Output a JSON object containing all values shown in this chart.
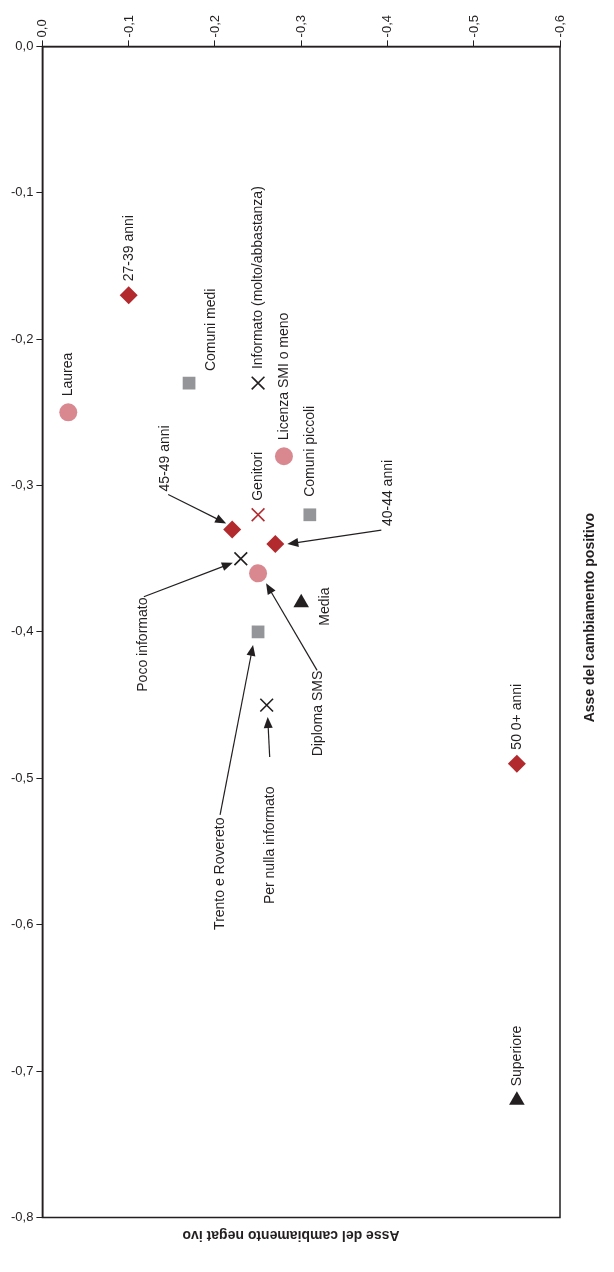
{
  "chart_data": {
    "type": "scatter",
    "xlabel": "Asse del cambiamento negat ivo",
    "ylabel": "Asse del cambiamento positivo",
    "xlim": [
      0,
      -0.6
    ],
    "ylim": [
      -0.8,
      0
    ],
    "xticks": [
      {
        "value": 0,
        "label": "0,0"
      },
      {
        "value": -0.1,
        "label": "-0,1"
      },
      {
        "value": -0.2,
        "label": "-0,2"
      },
      {
        "value": -0.3,
        "label": "-0,3"
      },
      {
        "value": -0.4,
        "label": "-0,4"
      },
      {
        "value": -0.5,
        "label": "-0,5"
      },
      {
        "value": -0.6,
        "label": "-0,6"
      }
    ],
    "yticks": [
      {
        "value": 0,
        "label": "0,0"
      },
      {
        "value": -0.1,
        "label": "-0,1"
      },
      {
        "value": -0.2,
        "label": "-0,2"
      },
      {
        "value": -0.3,
        "label": "-0,3"
      },
      {
        "value": -0.4,
        "label": "-0,4"
      },
      {
        "value": -0.5,
        "label": "-0,5"
      },
      {
        "value": -0.6,
        "label": "-0,6"
      },
      {
        "value": -0.7,
        "label": "-0,7"
      },
      {
        "value": -0.8,
        "label": "-0,8"
      }
    ],
    "series": [
      {
        "color": "#b22a2e",
        "marker": "diamond",
        "x": [
          -0.1,
          -0.22,
          -0.27,
          -0.55
        ],
        "values": [
          -0.17,
          -0.33,
          -0.34,
          -0.49
        ]
      },
      {
        "color": "#939598",
        "marker": "square",
        "x": [
          -0.17,
          -0.31,
          -0.25
        ],
        "values": [
          -0.23,
          -0.32,
          -0.4
        ]
      },
      {
        "color": "#d98890",
        "marker": "circle",
        "x": [
          -0.03,
          -0.28,
          -0.25
        ],
        "values": [
          -0.25,
          -0.28,
          -0.36
        ]
      },
      {
        "color": "#231f20",
        "marker": "cross",
        "x": [
          -0.25,
          -0.23,
          -0.26
        ],
        "values": [
          -0.23,
          -0.35,
          -0.45
        ]
      },
      {
        "color": "#b22a2e",
        "marker": "cross",
        "x": [
          -0.25
        ],
        "values": [
          -0.32
        ]
      },
      {
        "color": "#231f20",
        "marker": "triangle",
        "x": [
          -0.3,
          -0.55
        ],
        "values": [
          -0.38,
          -0.72
        ]
      }
    ],
    "annotations": [
      {
        "text": "27-39 anni",
        "x": -0.1,
        "y": -0.17
      },
      {
        "text": "Comuni medi",
        "x": -0.17,
        "y": -0.23
      },
      {
        "text": "Laurea",
        "x": -0.03,
        "y": -0.25
      },
      {
        "text": "Informato (molto/abbastanza)",
        "x": -0.25,
        "y": -0.23
      },
      {
        "text": "Licenza SMI o meno",
        "x": -0.28,
        "y": -0.28
      },
      {
        "text": "Comuni piccoli",
        "x": -0.31,
        "y": -0.32
      },
      {
        "text": "Genitori",
        "x": -0.25,
        "y": -0.32
      },
      "45-49 anni",
      "40-44 anni",
      "Poco informato",
      "Diploma SMS",
      {
        "text": "Media",
        "x": -0.3,
        "y": -0.38
      },
      "Trento e Rovereto",
      "Per nulla informato",
      {
        "text": "50 0+ anni",
        "x": -0.55,
        "y": -0.49
      },
      {
        "text": "Superiore",
        "x": -0.55,
        "y": -0.72
      }
    ],
    "grid": false,
    "legend": false
  }
}
